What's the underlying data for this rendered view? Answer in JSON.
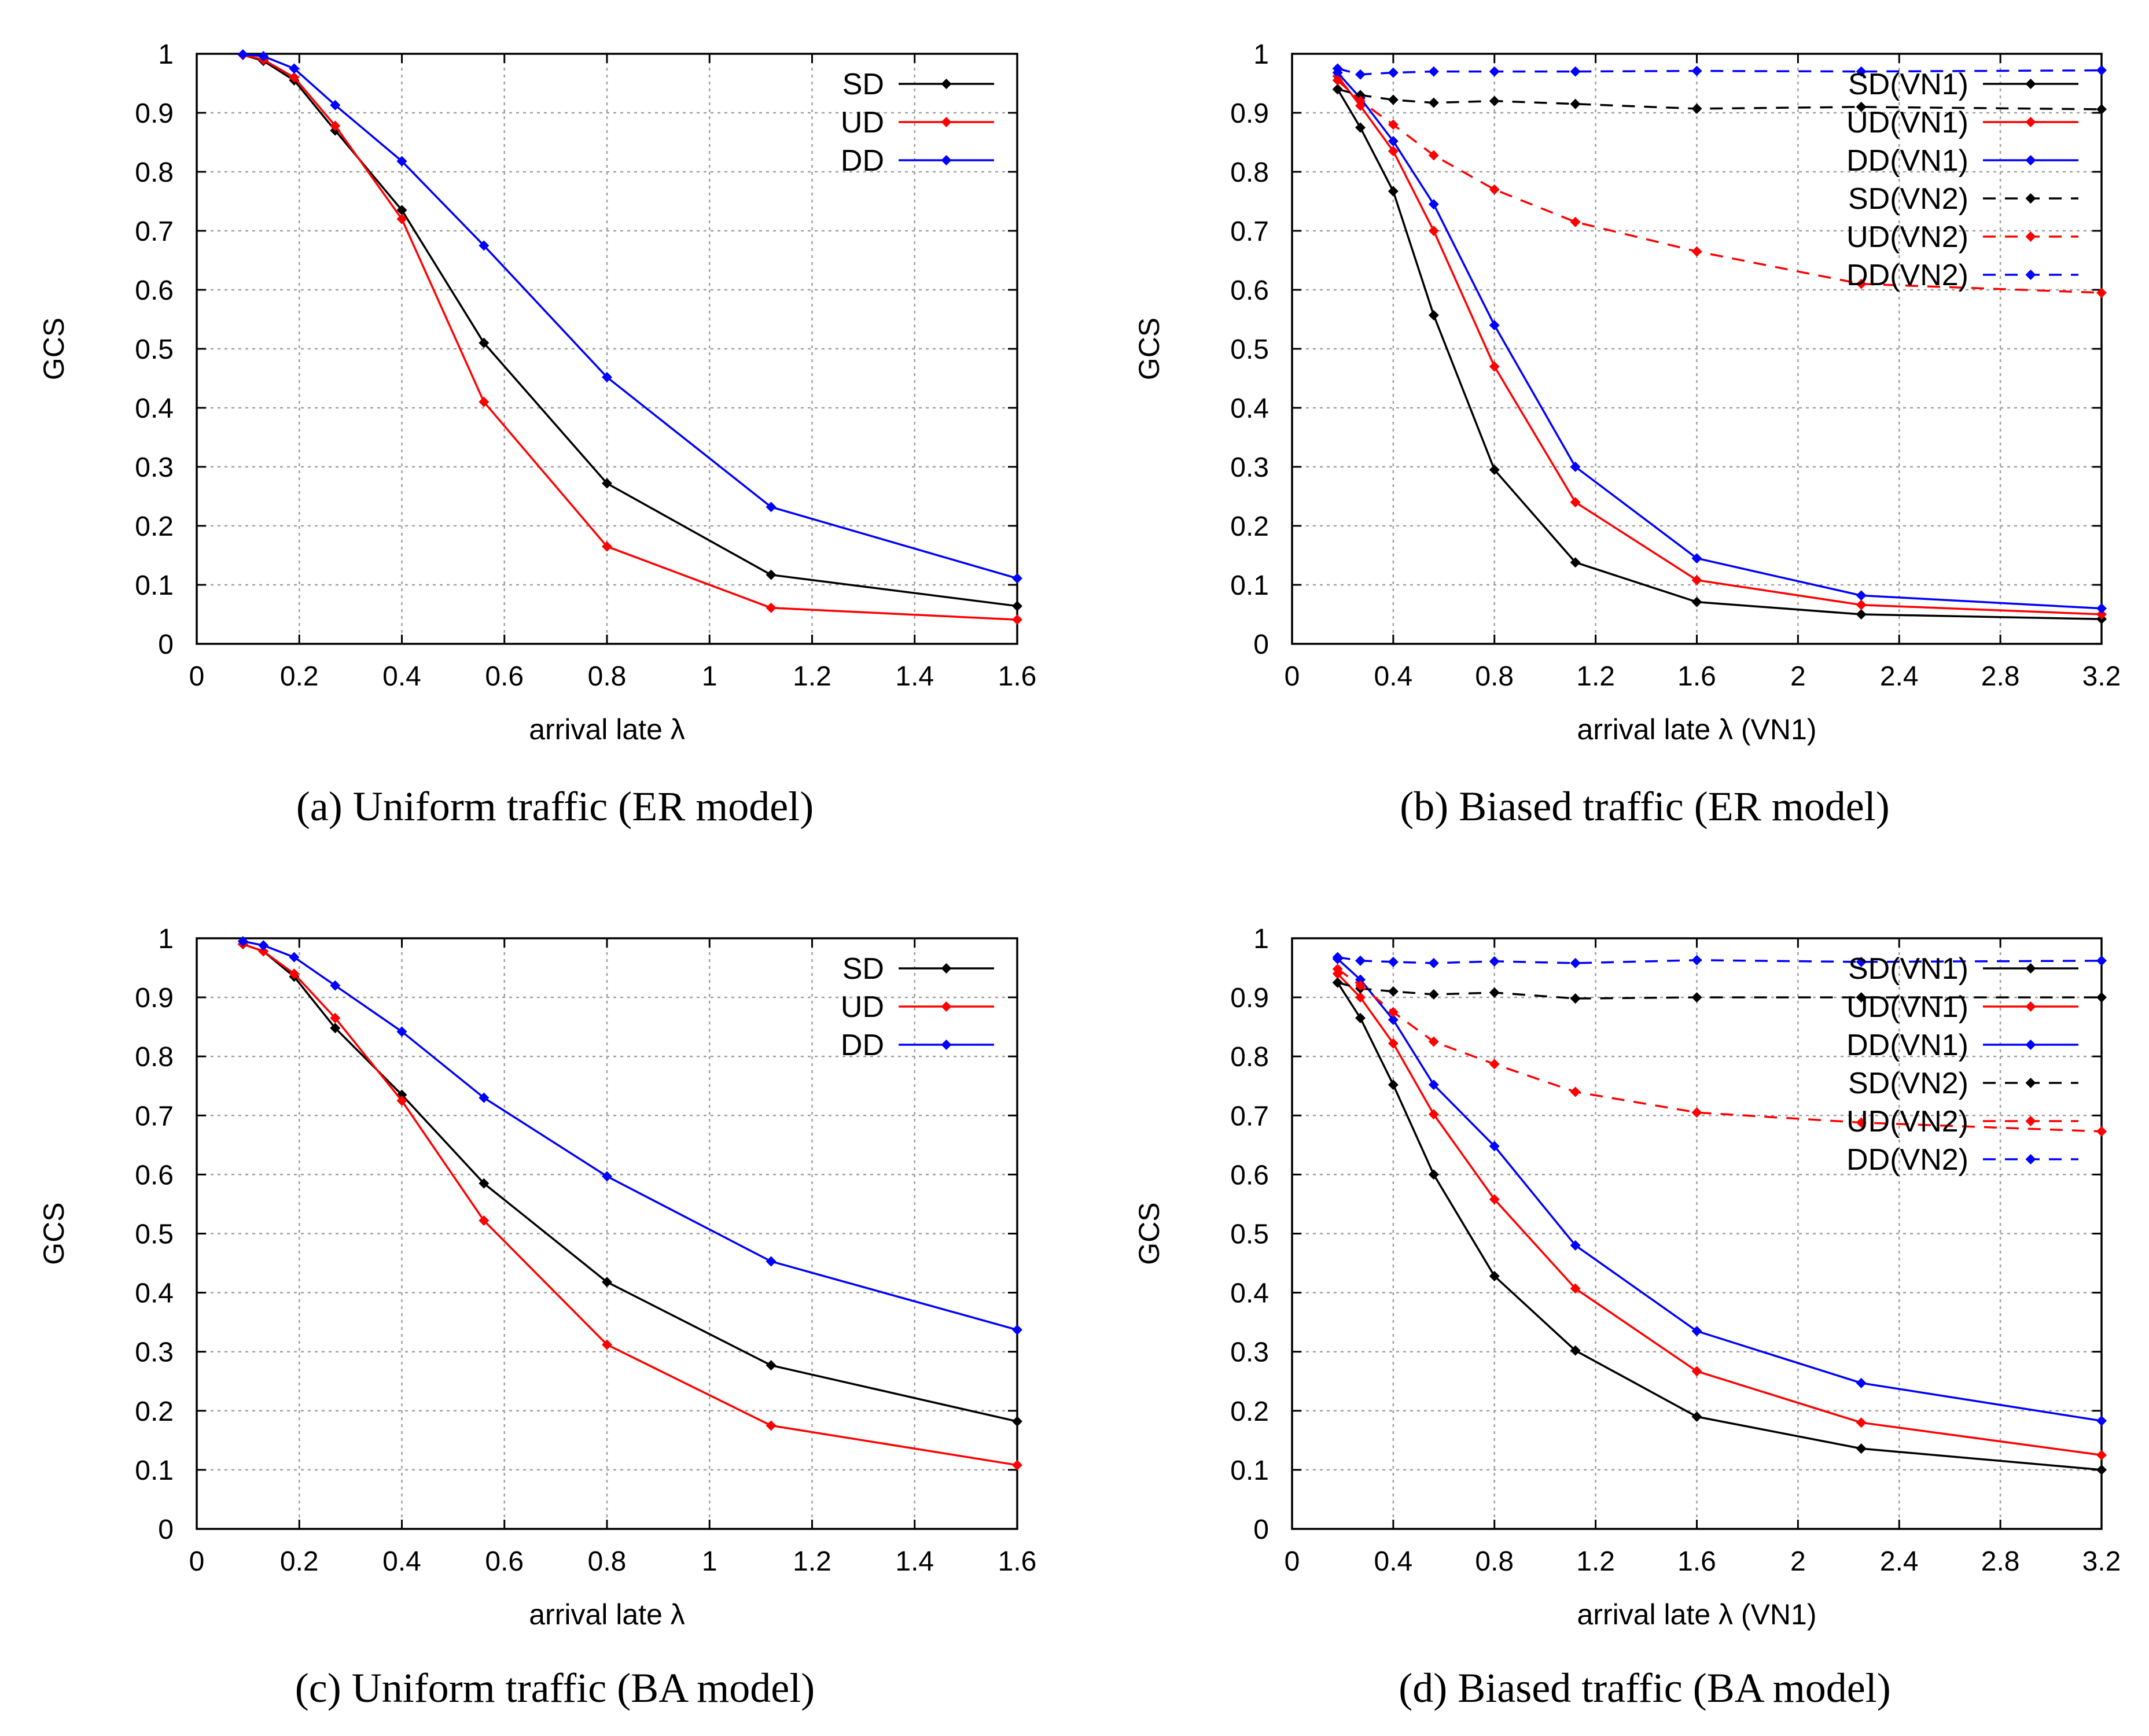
{
  "chart_data": [
    {
      "type": "line",
      "caption": "(a)  Uniform traffic (ER model)",
      "xlabel": "arrival late λ",
      "ylabel": "GCS",
      "xlim": [
        0,
        1.6
      ],
      "ylim": [
        0,
        1
      ],
      "xticks": [
        "0",
        "0.2",
        "0.4",
        "0.6",
        "0.8",
        "1",
        "1.2",
        "1.4",
        "1.6"
      ],
      "yticks": [
        "0",
        "0.1",
        "0.2",
        "0.3",
        "0.4",
        "0.5",
        "0.6",
        "0.7",
        "0.8",
        "0.9",
        "1"
      ],
      "grid": true,
      "legend": "top-right",
      "series": [
        {
          "name": "SD",
          "color": "#000000",
          "dash": false,
          "x": [
            0.09,
            0.13,
            0.19,
            0.27,
            0.4,
            0.56,
            0.8,
            1.12,
            1.6
          ],
          "y": [
            0.998,
            0.988,
            0.955,
            0.87,
            0.735,
            0.51,
            0.272,
            0.117,
            0.064
          ]
        },
        {
          "name": "UD",
          "color": "#ff0000",
          "dash": false,
          "x": [
            0.09,
            0.13,
            0.19,
            0.27,
            0.4,
            0.56,
            0.8,
            1.12,
            1.6
          ],
          "y": [
            0.998,
            0.99,
            0.96,
            0.878,
            0.72,
            0.41,
            0.165,
            0.061,
            0.041
          ]
        },
        {
          "name": "DD",
          "color": "#0000ff",
          "dash": false,
          "x": [
            0.09,
            0.13,
            0.19,
            0.27,
            0.4,
            0.56,
            0.8,
            1.12,
            1.6
          ],
          "y": [
            0.999,
            0.996,
            0.975,
            0.913,
            0.818,
            0.675,
            0.452,
            0.232,
            0.111
          ]
        }
      ]
    },
    {
      "type": "line",
      "caption": "(b)  Biased traffic (ER model)",
      "xlabel": "arrival late λ (VN1)",
      "ylabel": "GCS",
      "xlim": [
        0,
        3.2
      ],
      "ylim": [
        0,
        1
      ],
      "xticks": [
        "0",
        "0.4",
        "0.8",
        "1.2",
        "1.6",
        "2",
        "2.4",
        "2.8",
        "3.2"
      ],
      "yticks": [
        "0",
        "0.1",
        "0.2",
        "0.3",
        "0.4",
        "0.5",
        "0.6",
        "0.7",
        "0.8",
        "0.9",
        "1"
      ],
      "grid": true,
      "legend": "top-right",
      "series": [
        {
          "name": "SD(VN1)",
          "color": "#000000",
          "dash": false,
          "x": [
            0.18,
            0.27,
            0.4,
            0.56,
            0.8,
            1.12,
            1.6,
            2.25,
            3.2
          ],
          "y": [
            0.94,
            0.875,
            0.767,
            0.557,
            0.295,
            0.138,
            0.071,
            0.05,
            0.042
          ]
        },
        {
          "name": "UD(VN1)",
          "color": "#ff0000",
          "dash": false,
          "x": [
            0.18,
            0.27,
            0.4,
            0.56,
            0.8,
            1.12,
            1.6,
            2.25,
            3.2
          ],
          "y": [
            0.962,
            0.912,
            0.835,
            0.7,
            0.47,
            0.24,
            0.108,
            0.066,
            0.05
          ]
        },
        {
          "name": "DD(VN1)",
          "color": "#0000ff",
          "dash": false,
          "x": [
            0.18,
            0.27,
            0.4,
            0.56,
            0.8,
            1.12,
            1.6,
            2.25,
            3.2
          ],
          "y": [
            0.968,
            0.925,
            0.852,
            0.745,
            0.54,
            0.3,
            0.145,
            0.082,
            0.06
          ]
        },
        {
          "name": "SD(VN2)",
          "color": "#000000",
          "dash": true,
          "x": [
            0.18,
            0.27,
            0.4,
            0.56,
            0.8,
            1.12,
            1.6,
            2.25,
            3.2
          ],
          "y": [
            0.94,
            0.93,
            0.922,
            0.917,
            0.92,
            0.915,
            0.907,
            0.91,
            0.906
          ]
        },
        {
          "name": "UD(VN2)",
          "color": "#ff0000",
          "dash": true,
          "x": [
            0.18,
            0.27,
            0.4,
            0.56,
            0.8,
            1.12,
            1.6,
            2.25,
            3.2
          ],
          "y": [
            0.955,
            0.92,
            0.88,
            0.828,
            0.77,
            0.715,
            0.665,
            0.61,
            0.595
          ]
        },
        {
          "name": "DD(VN2)",
          "color": "#0000ff",
          "dash": true,
          "x": [
            0.18,
            0.27,
            0.4,
            0.56,
            0.8,
            1.12,
            1.6,
            2.25,
            3.2
          ],
          "y": [
            0.975,
            0.965,
            0.968,
            0.97,
            0.97,
            0.97,
            0.971,
            0.97,
            0.972
          ]
        }
      ]
    },
    {
      "type": "line",
      "caption": "(c)  Uniform traffic (BA model)",
      "xlabel": "arrival late λ",
      "ylabel": "GCS",
      "xlim": [
        0,
        1.6
      ],
      "ylim": [
        0,
        1
      ],
      "xticks": [
        "0",
        "0.2",
        "0.4",
        "0.6",
        "0.8",
        "1",
        "1.2",
        "1.4",
        "1.6"
      ],
      "yticks": [
        "0",
        "0.1",
        "0.2",
        "0.3",
        "0.4",
        "0.5",
        "0.6",
        "0.7",
        "0.8",
        "0.9",
        "1"
      ],
      "grid": true,
      "legend": "top-right",
      "series": [
        {
          "name": "SD",
          "color": "#000000",
          "dash": false,
          "x": [
            0.09,
            0.13,
            0.19,
            0.27,
            0.4,
            0.56,
            0.8,
            1.12,
            1.6
          ],
          "y": [
            0.99,
            0.978,
            0.935,
            0.848,
            0.735,
            0.585,
            0.418,
            0.277,
            0.182
          ]
        },
        {
          "name": "UD",
          "color": "#ff0000",
          "dash": false,
          "x": [
            0.09,
            0.13,
            0.19,
            0.27,
            0.4,
            0.56,
            0.8,
            1.12,
            1.6
          ],
          "y": [
            0.99,
            0.978,
            0.94,
            0.865,
            0.725,
            0.522,
            0.312,
            0.175,
            0.108
          ]
        },
        {
          "name": "DD",
          "color": "#0000ff",
          "dash": false,
          "x": [
            0.09,
            0.13,
            0.19,
            0.27,
            0.4,
            0.56,
            0.8,
            1.12,
            1.6
          ],
          "y": [
            0.995,
            0.988,
            0.968,
            0.92,
            0.842,
            0.73,
            0.597,
            0.453,
            0.337
          ]
        }
      ]
    },
    {
      "type": "line",
      "caption": "(d)  Biased traffic (BA model)",
      "xlabel": "arrival late λ (VN1)",
      "ylabel": "GCS",
      "xlim": [
        0,
        3.2
      ],
      "ylim": [
        0,
        1
      ],
      "xticks": [
        "0",
        "0.4",
        "0.8",
        "1.2",
        "1.6",
        "2",
        "2.4",
        "2.8",
        "3.2"
      ],
      "yticks": [
        "0",
        "0.1",
        "0.2",
        "0.3",
        "0.4",
        "0.5",
        "0.6",
        "0.7",
        "0.8",
        "0.9",
        "1"
      ],
      "grid": true,
      "legend": "top-right",
      "series": [
        {
          "name": "SD(VN1)",
          "color": "#000000",
          "dash": false,
          "x": [
            0.18,
            0.27,
            0.4,
            0.56,
            0.8,
            1.12,
            1.6,
            2.25,
            3.2
          ],
          "y": [
            0.925,
            0.865,
            0.752,
            0.6,
            0.428,
            0.302,
            0.19,
            0.136,
            0.1
          ]
        },
        {
          "name": "UD(VN1)",
          "color": "#ff0000",
          "dash": false,
          "x": [
            0.18,
            0.27,
            0.4,
            0.56,
            0.8,
            1.12,
            1.6,
            2.25,
            3.2
          ],
          "y": [
            0.94,
            0.9,
            0.822,
            0.702,
            0.558,
            0.407,
            0.267,
            0.18,
            0.125
          ]
        },
        {
          "name": "DD(VN1)",
          "color": "#0000ff",
          "dash": false,
          "x": [
            0.18,
            0.27,
            0.4,
            0.56,
            0.8,
            1.12,
            1.6,
            2.25,
            3.2
          ],
          "y": [
            0.965,
            0.93,
            0.862,
            0.752,
            0.648,
            0.48,
            0.335,
            0.247,
            0.183
          ]
        },
        {
          "name": "SD(VN2)",
          "color": "#000000",
          "dash": true,
          "x": [
            0.18,
            0.27,
            0.4,
            0.56,
            0.8,
            1.12,
            1.6,
            2.25,
            3.2
          ],
          "y": [
            0.925,
            0.915,
            0.91,
            0.905,
            0.908,
            0.898,
            0.9,
            0.9,
            0.9
          ]
        },
        {
          "name": "UD(VN2)",
          "color": "#ff0000",
          "dash": true,
          "x": [
            0.18,
            0.27,
            0.4,
            0.56,
            0.8,
            1.12,
            1.6,
            2.25,
            3.2
          ],
          "y": [
            0.948,
            0.92,
            0.875,
            0.825,
            0.787,
            0.74,
            0.705,
            0.688,
            0.673
          ]
        },
        {
          "name": "DD(VN2)",
          "color": "#0000ff",
          "dash": true,
          "x": [
            0.18,
            0.27,
            0.4,
            0.56,
            0.8,
            1.12,
            1.6,
            2.25,
            3.2
          ],
          "y": [
            0.968,
            0.962,
            0.96,
            0.958,
            0.961,
            0.958,
            0.963,
            0.96,
            0.962
          ]
        }
      ]
    }
  ]
}
